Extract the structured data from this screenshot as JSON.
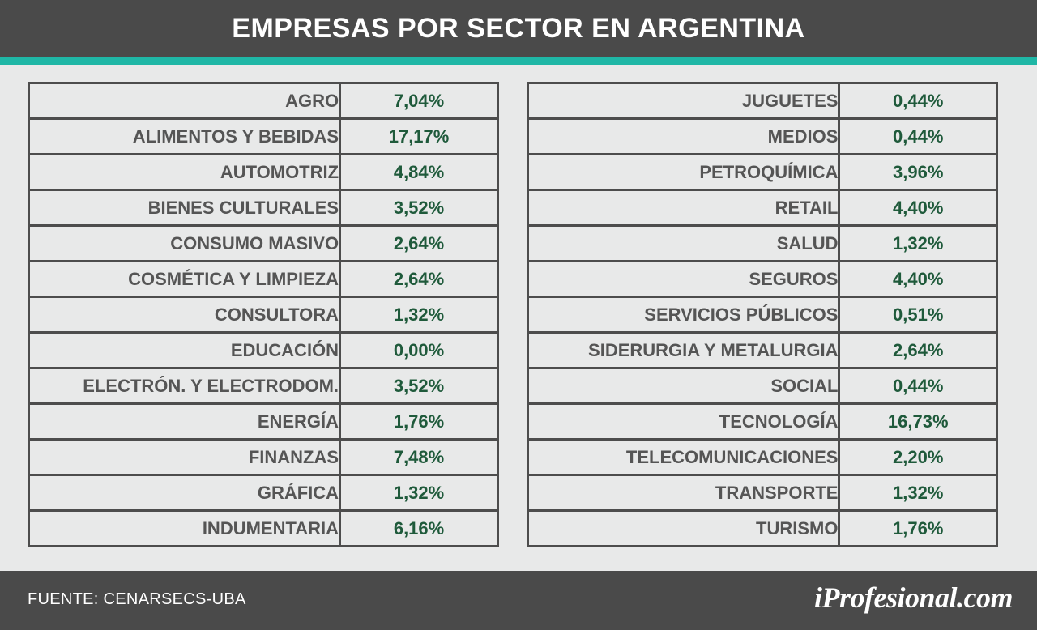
{
  "chart_data": {
    "type": "table",
    "title": "EMPRESAS POR SECTOR EN ARGENTINA",
    "left_rows": [
      {
        "sector": "AGRO",
        "value": "7,04%"
      },
      {
        "sector": "ALIMENTOS Y BEBIDAS",
        "value": "17,17%"
      },
      {
        "sector": "AUTOMOTRIZ",
        "value": "4,84%"
      },
      {
        "sector": "BIENES CULTURALES",
        "value": "3,52%"
      },
      {
        "sector": "CONSUMO MASIVO",
        "value": "2,64%"
      },
      {
        "sector": "COSMÉTICA Y LIMPIEZA",
        "value": "2,64%"
      },
      {
        "sector": "CONSULTORA",
        "value": "1,32%"
      },
      {
        "sector": "EDUCACIÓN",
        "value": "0,00%"
      },
      {
        "sector": "ELECTRÓN. Y ELECTRODOM.",
        "value": "3,52%"
      },
      {
        "sector": "ENERGÍA",
        "value": "1,76%"
      },
      {
        "sector": "FINANZAS",
        "value": "7,48%"
      },
      {
        "sector": "GRÁFICA",
        "value": "1,32%"
      },
      {
        "sector": "INDUMENTARIA",
        "value": "6,16%"
      }
    ],
    "right_rows": [
      {
        "sector": "JUGUETES",
        "value": "0,44%"
      },
      {
        "sector": "MEDIOS",
        "value": "0,44%"
      },
      {
        "sector": "PETROQUÍMICA",
        "value": "3,96%"
      },
      {
        "sector": "RETAIL",
        "value": "4,40%"
      },
      {
        "sector": "SALUD",
        "value": "1,32%"
      },
      {
        "sector": "SEGUROS",
        "value": "4,40%"
      },
      {
        "sector": "SERVICIOS PÚBLICOS",
        "value": "0,51%"
      },
      {
        "sector": "SIDERURGIA Y METALURGIA",
        "value": "2,64%"
      },
      {
        "sector": "SOCIAL",
        "value": "0,44%"
      },
      {
        "sector": "TECNOLOGÍA",
        "value": "16,73%"
      },
      {
        "sector": "TELECOMUNICACIONES",
        "value": "2,20%"
      },
      {
        "sector": "TRANSPORTE",
        "value": "1,32%"
      },
      {
        "sector": "TURISMO",
        "value": "1,76%"
      }
    ]
  },
  "footer": {
    "source": "FUENTE:  CENARSECS-UBA",
    "logo": "iProfesional.com"
  },
  "colors": {
    "header_bg": "#4a4a4a",
    "accent": "#1fb7a6",
    "value_text": "#1f5a3b",
    "label_text": "#555555"
  }
}
